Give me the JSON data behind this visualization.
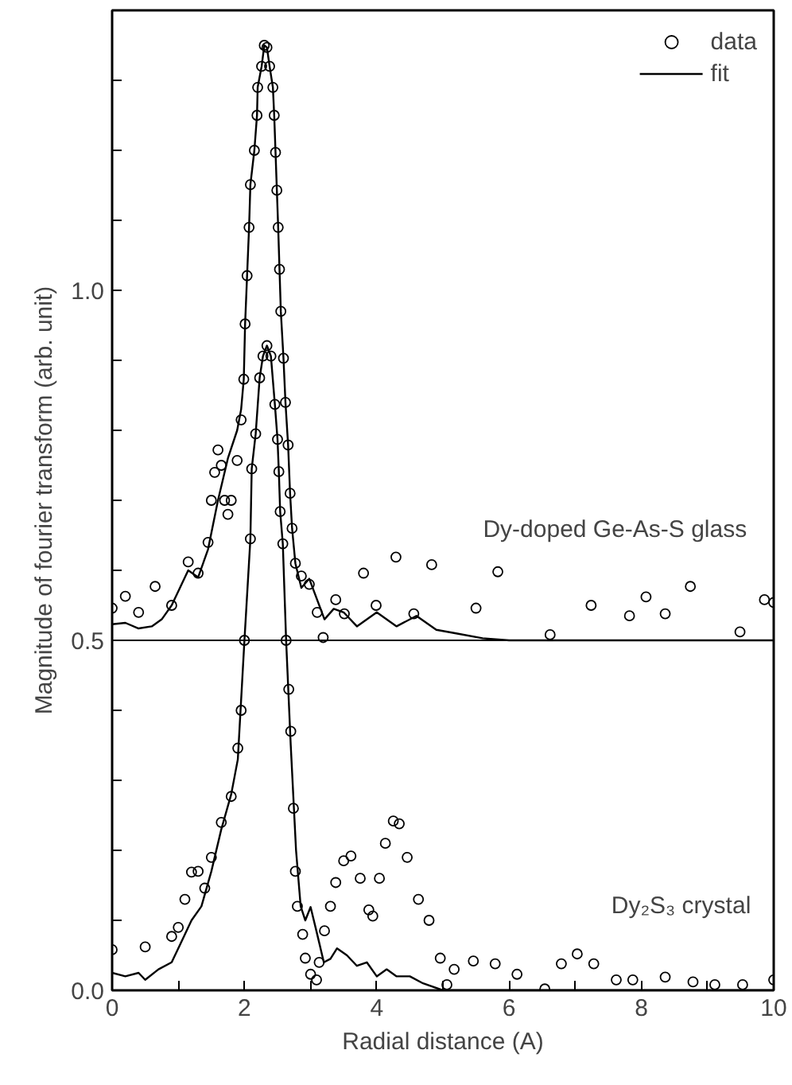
{
  "chart_data": {
    "type": "scatter",
    "xlabel": "Radial distance (A)",
    "ylabel": "Magnitude of fourier transform (arb. unit)",
    "xlim": [
      0,
      10
    ],
    "ylim": [
      0,
      1.4
    ],
    "xticks": [
      0,
      {
        "value": 1,
        "label": null
      },
      2,
      {
        "value": 3,
        "label": null
      },
      4,
      {
        "value": 5,
        "label": null
      },
      6,
      {
        "value": 7,
        "label": null
      },
      8,
      {
        "value": 9,
        "label": null
      },
      10
    ],
    "yticks": [
      {
        "value": 0,
        "label": "0.0"
      },
      {
        "value": 0.1,
        "label": null
      },
      {
        "value": 0.2,
        "label": null
      },
      {
        "value": 0.3,
        "label": null
      },
      {
        "value": 0.4,
        "label": null
      },
      0.5,
      {
        "value": 0.6,
        "label": null
      },
      {
        "value": 0.7,
        "label": null
      },
      {
        "value": 0.8,
        "label": null
      },
      {
        "value": 0.9,
        "label": null
      },
      {
        "value": 1,
        "label": "1.0"
      },
      {
        "value": 1.1,
        "label": null
      },
      {
        "value": 1.2,
        "label": null
      },
      {
        "value": 1.3,
        "label": null
      }
    ],
    "grid": false,
    "legend": "top right",
    "ref_lines": [
      {
        "axis": "y",
        "value": 0.5,
        "color": "#000000"
      }
    ],
    "annotations": [
      "Dy-doped Ge-As-S glass",
      "Dy₂S₃ crystal"
    ],
    "series": [
      {
        "name": "data",
        "marker": "circle",
        "color": "#000000",
        "x": [
          0,
          0.2,
          0.4,
          0.65,
          0.9,
          1.15,
          1.3,
          1.45,
          1.5,
          1.55,
          1.6,
          1.65,
          1.7,
          1.75,
          1.8,
          1.89,
          1.95,
          1.99,
          2.01,
          2.04,
          2.07,
          2.09,
          2.15,
          2.19,
          2.2,
          2.26,
          2.3,
          2.34,
          2.38,
          2.43,
          2.45,
          2.47,
          2.49,
          2.51,
          2.53,
          2.55,
          2.59,
          2.62,
          2.66,
          2.69,
          2.72,
          2.77,
          2.86,
          2.98,
          3.1,
          3.19,
          3.38,
          3.51,
          3.8,
          3.99,
          4.29,
          4.56,
          4.83,
          5.5,
          5.83,
          6.62,
          7.24,
          7.82,
          8.07,
          8.36,
          8.74,
          9.49,
          9.86,
          10
        ],
        "values": [
          0.546,
          0.563,
          0.54,
          0.577,
          0.55,
          0.612,
          0.596,
          0.64,
          0.7,
          0.74,
          0.772,
          0.75,
          0.7,
          0.68,
          0.7,
          0.757,
          0.815,
          0.873,
          0.952,
          1.021,
          1.09,
          1.151,
          1.2,
          1.25,
          1.29,
          1.32,
          1.35,
          1.347,
          1.32,
          1.29,
          1.25,
          1.197,
          1.143,
          1.09,
          1.03,
          0.97,
          0.903,
          0.84,
          0.779,
          0.71,
          0.66,
          0.61,
          0.592,
          0.58,
          0.54,
          0.504,
          0.558,
          0.538,
          0.596,
          0.55,
          0.619,
          0.538,
          0.608,
          0.546,
          0.598,
          0.508,
          0.55,
          0.535,
          0.562,
          0.538,
          0.577,
          0.512,
          0.558,
          0.554
        ]
      },
      {
        "name": "fit",
        "type": "line",
        "marker": "none",
        "color": "#000000",
        "x": [
          0,
          0.2,
          0.4,
          0.6,
          0.75,
          0.9,
          1.15,
          1.3,
          1.45,
          1.6,
          1.75,
          1.89,
          1.95,
          1.99,
          2.01,
          2.04,
          2.07,
          2.09,
          2.15,
          2.19,
          2.2,
          2.26,
          2.3,
          2.34,
          2.38,
          2.43,
          2.45,
          2.47,
          2.49,
          2.51,
          2.53,
          2.55,
          2.59,
          2.62,
          2.66,
          2.69,
          2.72,
          2.77,
          2.86,
          2.98,
          3.21,
          3.35,
          3.5,
          3.7,
          4.0,
          4.3,
          4.6,
          4.9,
          5.2,
          5.6,
          6,
          10
        ],
        "values": [
          0.523,
          0.525,
          0.517,
          0.52,
          0.53,
          0.55,
          0.6,
          0.59,
          0.63,
          0.7,
          0.76,
          0.8,
          0.83,
          0.873,
          0.952,
          1.021,
          1.09,
          1.151,
          1.2,
          1.25,
          1.29,
          1.32,
          1.35,
          1.347,
          1.32,
          1.29,
          1.25,
          1.197,
          1.143,
          1.09,
          1.03,
          0.97,
          0.903,
          0.84,
          0.779,
          0.71,
          0.66,
          0.61,
          0.575,
          0.588,
          0.53,
          0.545,
          0.54,
          0.52,
          0.54,
          0.52,
          0.535,
          0.515,
          0.51,
          0.503,
          0.5,
          0.5
        ]
      },
      {
        "marker": "circle",
        "color": "#000000",
        "x": [
          0,
          0.5,
          0.9,
          1.0,
          1.1,
          1.2,
          1.3,
          1.4,
          1.5,
          1.65,
          1.8,
          1.9,
          1.95,
          2.0,
          2.09,
          2.11,
          2.17,
          2.23,
          2.28,
          2.34,
          2.4,
          2.46,
          2.5,
          2.52,
          2.54,
          2.58,
          2.63,
          2.67,
          2.7,
          2.74,
          2.77,
          2.8,
          2.88,
          2.92,
          3.0,
          3.09,
          3.13,
          3.21,
          3.3,
          3.38,
          3.5,
          3.61,
          3.75,
          3.88,
          3.94,
          4.04,
          4.13,
          4.25,
          4.34,
          4.46,
          4.63,
          4.79,
          4.96,
          5.06,
          5.17,
          5.46,
          5.79,
          6.12,
          6.54,
          6.79,
          7.03,
          7.28,
          7.62,
          7.87,
          8.36,
          8.78,
          9.11,
          9.53,
          10
        ],
        "values": [
          0.058,
          0.062,
          0.077,
          0.09,
          0.13,
          0.169,
          0.17,
          0.146,
          0.19,
          0.24,
          0.277,
          0.346,
          0.4,
          0.5,
          0.645,
          0.745,
          0.795,
          0.875,
          0.906,
          0.921,
          0.906,
          0.837,
          0.787,
          0.741,
          0.684,
          0.638,
          0.5,
          0.43,
          0.37,
          0.26,
          0.17,
          0.12,
          0.08,
          0.046,
          0.023,
          0.015,
          0.04,
          0.085,
          0.12,
          0.154,
          0.185,
          0.192,
          0.16,
          0.115,
          0.106,
          0.16,
          0.21,
          0.242,
          0.238,
          0.19,
          0.13,
          0.1,
          0.046,
          0.008,
          0.03,
          0.042,
          0.038,
          0.023,
          0.002,
          0.038,
          0.052,
          0.038,
          0.015,
          0.015,
          0.019,
          0.012,
          0.008,
          0.008,
          0.015
        ]
      },
      {
        "type": "line",
        "marker": "none",
        "color": "#000000",
        "x": [
          0,
          0.2,
          0.4,
          0.5,
          0.7,
          0.9,
          1.05,
          1.2,
          1.35,
          1.5,
          1.65,
          1.8,
          1.9,
          2.0,
          2.09,
          2.11,
          2.17,
          2.23,
          2.28,
          2.34,
          2.4,
          2.46,
          2.5,
          2.52,
          2.54,
          2.58,
          2.63,
          2.7,
          2.78,
          2.85,
          2.92,
          3.0,
          3.1,
          3.2,
          3.3,
          3.4,
          3.55,
          3.7,
          3.85,
          4.0,
          4.15,
          4.3,
          4.5,
          4.7,
          5.0,
          6,
          10
        ],
        "values": [
          0.025,
          0.02,
          0.025,
          0.015,
          0.03,
          0.04,
          0.07,
          0.1,
          0.12,
          0.17,
          0.23,
          0.28,
          0.33,
          0.5,
          0.645,
          0.745,
          0.795,
          0.875,
          0.906,
          0.921,
          0.906,
          0.837,
          0.787,
          0.741,
          0.684,
          0.638,
          0.5,
          0.35,
          0.2,
          0.12,
          0.1,
          0.119,
          0.08,
          0.04,
          0.045,
          0.06,
          0.05,
          0.035,
          0.04,
          0.02,
          0.03,
          0.02,
          0.02,
          0.01,
          0,
          0,
          0
        ]
      }
    ]
  }
}
